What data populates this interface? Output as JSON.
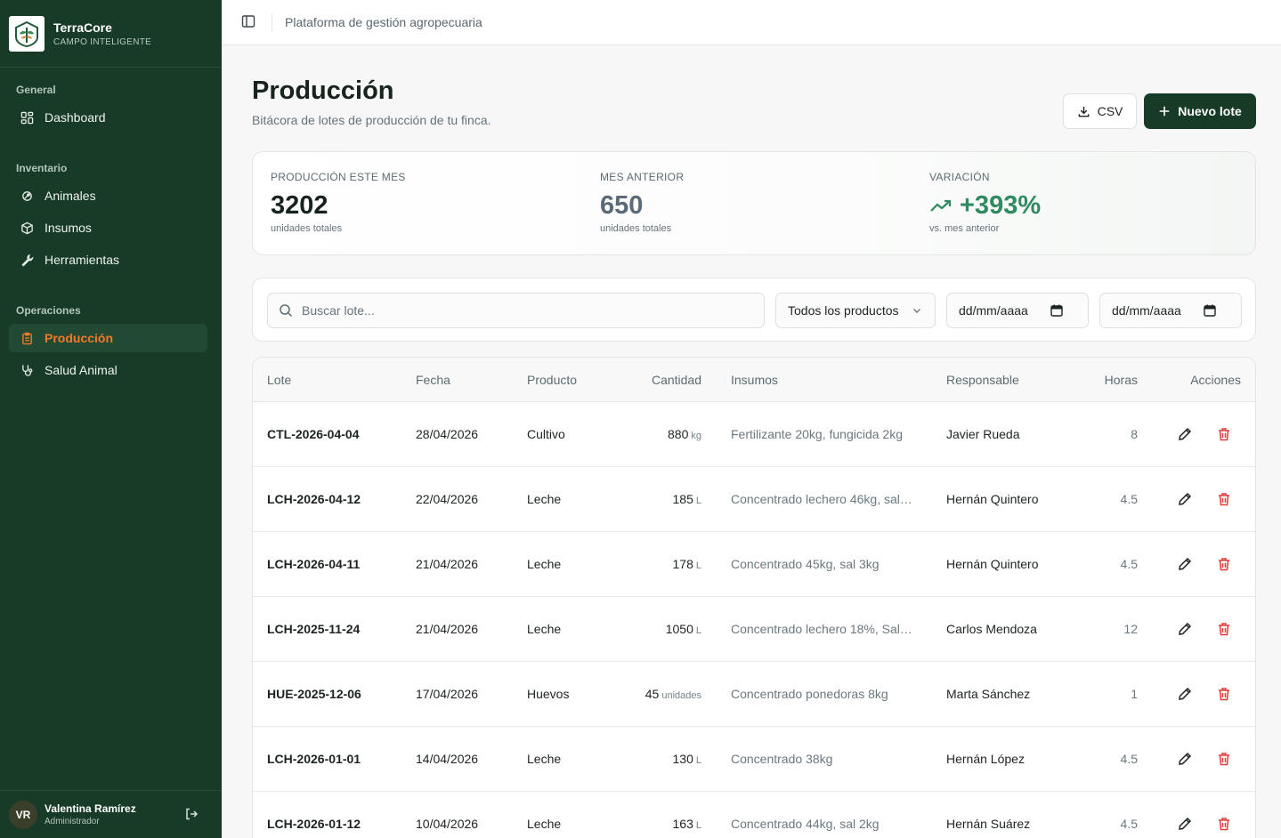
{
  "brand": {
    "name": "TerraCore",
    "subtitle": "CAMPO INTELIGENTE"
  },
  "sidebar": {
    "sections": [
      {
        "label": "General"
      },
      {
        "label": "Inventario"
      },
      {
        "label": "Operaciones"
      }
    ],
    "items": [
      {
        "label": "Dashboard",
        "icon": "dashboard-icon"
      },
      {
        "label": "Animales",
        "icon": "paw-icon"
      },
      {
        "label": "Insumos",
        "icon": "package-icon"
      },
      {
        "label": "Herramientas",
        "icon": "wrench-icon"
      },
      {
        "label": "Producción",
        "icon": "clipboard-icon",
        "active": true
      },
      {
        "label": "Salud Animal",
        "icon": "stethoscope-icon"
      }
    ]
  },
  "user": {
    "initials": "VR",
    "name": "Valentina Ramírez",
    "role": "Administrador"
  },
  "topbar": {
    "title": "Plataforma de gestión agropecuaria"
  },
  "header": {
    "title": "Producción",
    "subtitle": "Bitácora de lotes de producción de tu finca.",
    "csv_label": "CSV",
    "new_label": "Nuevo lote"
  },
  "stats": {
    "current": {
      "label": "PRODUCCIÓN ESTE MES",
      "value": "3202",
      "note": "unidades totales"
    },
    "previous": {
      "label": "MES ANTERIOR",
      "value": "650",
      "note": "unidades totales"
    },
    "variation": {
      "label": "VARIACIÓN",
      "value": "+393%",
      "note": "vs. mes anterior"
    }
  },
  "filters": {
    "search_placeholder": "Buscar lote...",
    "product_selected": "Todos los productos",
    "date_from": "dd/mm/aaaa",
    "date_to": "dd/mm/aaaa"
  },
  "table": {
    "columns": [
      "Lote",
      "Fecha",
      "Producto",
      "Cantidad",
      "Insumos",
      "Responsable",
      "Horas",
      "Acciones"
    ],
    "rows": [
      {
        "lote": "CTL-2026-04-04",
        "fecha": "28/04/2026",
        "producto": "Cultivo",
        "cantidad": "880",
        "unidad": "kg",
        "insumos": "Fertilizante 20kg, fungicida 2kg",
        "responsable": "Javier Rueda",
        "horas": "8"
      },
      {
        "lote": "LCH-2026-04-12",
        "fecha": "22/04/2026",
        "producto": "Leche",
        "cantidad": "185",
        "unidad": "L",
        "insumos": "Concentrado lechero 46kg, sal ...",
        "responsable": "Hernán Quintero",
        "horas": "4.5"
      },
      {
        "lote": "LCH-2026-04-11",
        "fecha": "21/04/2026",
        "producto": "Leche",
        "cantidad": "178",
        "unidad": "L",
        "insumos": "Concentrado 45kg, sal 3kg",
        "responsable": "Hernán Quintero",
        "horas": "4.5"
      },
      {
        "lote": "LCH-2025-11-24",
        "fecha": "21/04/2026",
        "producto": "Leche",
        "cantidad": "1050",
        "unidad": "L",
        "insumos": "Concentrado lechero 18%, Sal ...",
        "responsable": "Carlos Mendoza",
        "horas": "12"
      },
      {
        "lote": "HUE-2025-12-06",
        "fecha": "17/04/2026",
        "producto": "Huevos",
        "cantidad": "45",
        "unidad": "unidades",
        "insumos": "Concentrado ponedoras 8kg",
        "responsable": "Marta Sánchez",
        "horas": "1"
      },
      {
        "lote": "LCH-2026-01-01",
        "fecha": "14/04/2026",
        "producto": "Leche",
        "cantidad": "130",
        "unidad": "L",
        "insumos": "Concentrado 38kg",
        "responsable": "Hernán López",
        "horas": "4.5"
      },
      {
        "lote": "LCH-2026-01-12",
        "fecha": "10/04/2026",
        "producto": "Leche",
        "cantidad": "163",
        "unidad": "L",
        "insumos": "Concentrado 44kg, sal 2kg",
        "responsable": "Hernán Suárez",
        "horas": "4.5"
      }
    ]
  },
  "colors": {
    "sidebar": "#173b27",
    "accent": "#f07a2a",
    "positive": "#2f8a5f",
    "danger": "#e23b3b"
  }
}
